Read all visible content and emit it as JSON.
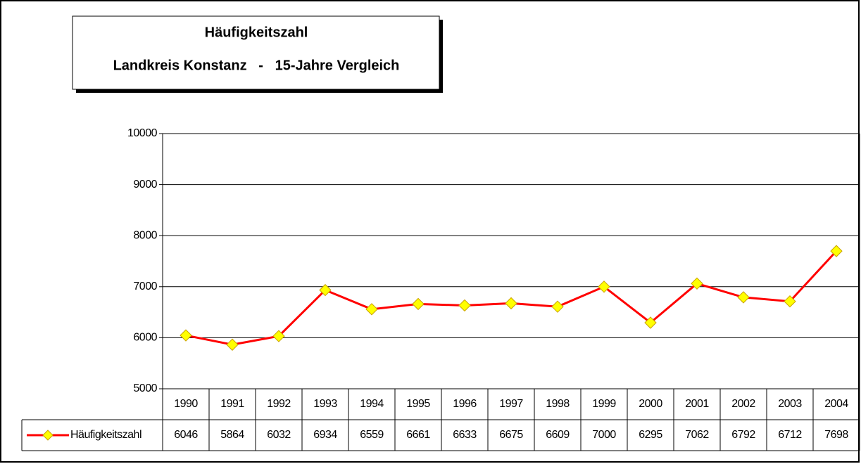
{
  "chart_data": {
    "type": "line",
    "title": [
      "Häufigkeitszahl",
      "Landkreis Konstanz   -   15-Jahre Vergleich"
    ],
    "categories": [
      "1990",
      "1991",
      "1992",
      "1993",
      "1994",
      "1995",
      "1996",
      "1997",
      "1998",
      "1999",
      "2000",
      "2001",
      "2002",
      "2003",
      "2004"
    ],
    "series": [
      {
        "name": "Häufigkeitszahl",
        "color": "#ff0000",
        "marker_color": "#ffff00",
        "values": [
          6046,
          5864,
          6032,
          6934,
          6559,
          6661,
          6633,
          6675,
          6609,
          7000,
          6295,
          7062,
          6792,
          6712,
          7698
        ]
      }
    ],
    "ylim": [
      5000,
      10000
    ],
    "yticks": [
      5000,
      6000,
      7000,
      8000,
      9000,
      10000
    ],
    "grid": true
  }
}
